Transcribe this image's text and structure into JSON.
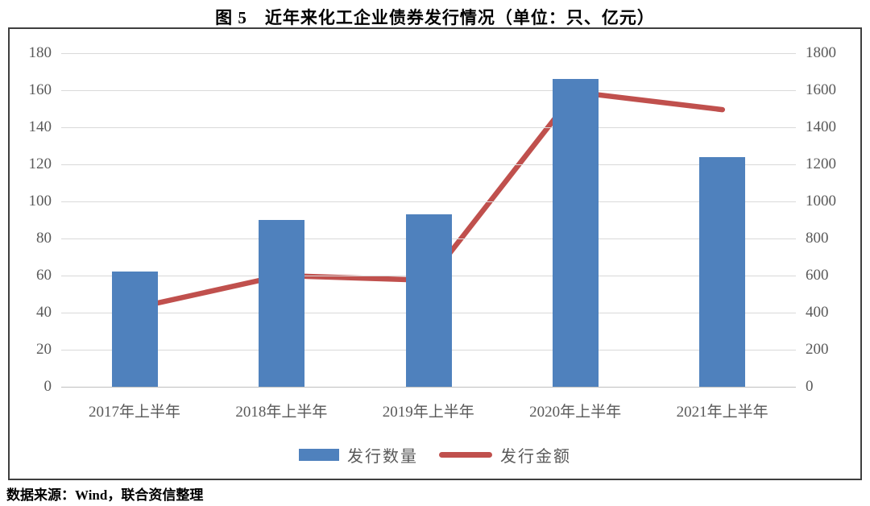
{
  "title": "图 5　近年来化工企业债券发行情况（单位：只、亿元）",
  "source_note": "数据来源：Wind，联合资信整理",
  "colors": {
    "bar": "#4F81BD",
    "line": "#C0504D",
    "gridline": "#d9d9d9",
    "axis_line": "#bfbfbf",
    "tick_text": "#595959",
    "frame_border": "#3f3f3f"
  },
  "chart_data": {
    "type": "bar+line",
    "title": "图 5　近年来化工企业债券发行情况（单位：只、亿元）",
    "categories": [
      "2017年上半年",
      "2018年上半年",
      "2019年上半年",
      "2020年上半年",
      "2021年上半年"
    ],
    "series": [
      {
        "name": "发行数量",
        "type": "bar",
        "axis": "left",
        "color": "#4F81BD",
        "values": [
          62,
          90,
          93,
          166,
          124
        ]
      },
      {
        "name": "发行金额",
        "type": "line",
        "axis": "right",
        "color": "#C0504D",
        "values": [
          425,
          600,
          575,
          1590,
          1495
        ]
      }
    ],
    "left_axis": {
      "min": 0,
      "max": 180,
      "step": 20,
      "ticks": [
        "0",
        "20",
        "40",
        "60",
        "80",
        "100",
        "120",
        "140",
        "160",
        "180"
      ]
    },
    "right_axis": {
      "min": 0,
      "max": 1800,
      "step": 200,
      "ticks": [
        "0",
        "200",
        "400",
        "600",
        "800",
        "1000",
        "1200",
        "1400",
        "1600",
        "1800"
      ]
    },
    "grid": true,
    "legend_position": "bottom",
    "legend": [
      "发行数量",
      "发行金额"
    ]
  }
}
